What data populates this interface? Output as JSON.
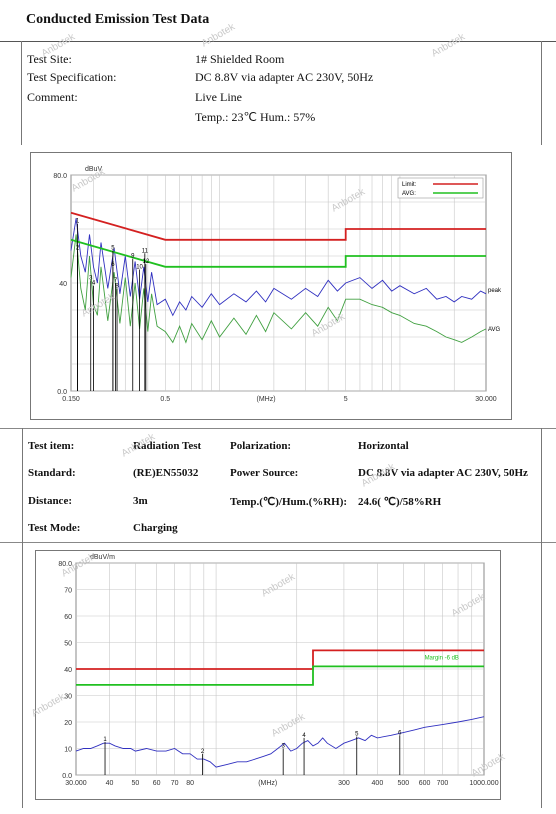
{
  "page_title": "Conducted Emission Test Data",
  "watermark": "Anbotek",
  "info1": [
    {
      "label": "Test Site:",
      "value": "1# Shielded Room"
    },
    {
      "label": "Test Specification:",
      "value": "DC 8.8V via adapter AC 230V, 50Hz"
    },
    {
      "label": "Comment:",
      "value": "Live Line"
    },
    {
      "label": "",
      "value": "Temp.: 23℃ Hum.: 57%"
    }
  ],
  "info2": {
    "test_item_label": "Test item:",
    "test_item_value": "Radiation Test",
    "polarization_label": "Polarization:",
    "polarization_value": "Horizontal",
    "standard_label": "Standard:",
    "standard_value": "(RE)EN55032",
    "power_label": "Power Source:",
    "power_value": "DC 8.8V via adapter AC 230V, 50Hz",
    "distance_label": "Distance:",
    "distance_value": "3m",
    "temp_label": "Temp.(℃)/Hum.(%RH):",
    "temp_value": "24.6(   ℃)/58%RH",
    "mode_label": "Test Mode:",
    "mode_value": "Charging"
  },
  "colors": {
    "limit": "#d42020",
    "avg": "#20c020",
    "peak": "#3030c0",
    "avg_trace": "#40a040",
    "grid": "#c8c8c8"
  },
  "chart_data": [
    {
      "type": "line",
      "x_scale": "log",
      "ylabel": "dBuV",
      "xlabel": "(MHz)",
      "xlim": [
        0.15,
        30
      ],
      "ylim": [
        0,
        80
      ],
      "y_ticks": [
        "0.0",
        "40",
        "80.0"
      ],
      "x_ticks": [
        {
          "v": 0.15,
          "label": "0.150"
        },
        {
          "v": 0.5,
          "label": "0.5"
        },
        {
          "v": 5,
          "label": "5"
        },
        {
          "v": 30,
          "label": "30.000"
        }
      ],
      "legend": [
        {
          "name": "Limit:",
          "color": "#d42020"
        },
        {
          "name": "AVG:",
          "color": "#20c020"
        }
      ],
      "trace_labels": {
        "peak": "peak",
        "avg": "AVG"
      },
      "limit_qp": {
        "x": [
          0.15,
          0.5,
          0.5,
          5,
          5,
          30
        ],
        "y": [
          66,
          56,
          56,
          56,
          60,
          60
        ]
      },
      "limit_avg": {
        "x": [
          0.15,
          0.5,
          0.5,
          5,
          5,
          30
        ],
        "y": [
          56,
          46,
          46,
          46,
          50,
          50
        ]
      },
      "peak_trace": {
        "x": [
          0.15,
          0.16,
          0.17,
          0.18,
          0.19,
          0.2,
          0.21,
          0.22,
          0.24,
          0.26,
          0.28,
          0.3,
          0.32,
          0.34,
          0.36,
          0.38,
          0.4,
          0.42,
          0.45,
          0.5,
          0.55,
          0.6,
          0.65,
          0.7,
          0.8,
          0.9,
          1.0,
          1.2,
          1.4,
          1.6,
          1.8,
          2.0,
          2.5,
          3.0,
          3.5,
          4.0,
          4.5,
          5.0,
          6.0,
          7.0,
          8.0,
          9.0,
          10,
          12,
          14,
          16,
          18,
          20,
          22,
          25,
          28,
          30
        ],
        "y": [
          52,
          64,
          50,
          44,
          58,
          46,
          40,
          55,
          38,
          53,
          36,
          50,
          35,
          48,
          34,
          46,
          33,
          44,
          32,
          34,
          28,
          33,
          30,
          35,
          31,
          36,
          32,
          36,
          33,
          37,
          33,
          38,
          34,
          38,
          35,
          41,
          37,
          40,
          42,
          38,
          41,
          37,
          39,
          36,
          38,
          34,
          35,
          33,
          35,
          34,
          37,
          36
        ]
      },
      "avg_trace": {
        "x": [
          0.15,
          0.16,
          0.17,
          0.18,
          0.19,
          0.2,
          0.21,
          0.22,
          0.24,
          0.26,
          0.28,
          0.3,
          0.32,
          0.34,
          0.36,
          0.38,
          0.4,
          0.42,
          0.45,
          0.5,
          0.55,
          0.6,
          0.65,
          0.7,
          0.8,
          0.9,
          1.0,
          1.2,
          1.4,
          1.6,
          1.8,
          2.0,
          2.5,
          3.0,
          3.5,
          4.0,
          4.5,
          5.0,
          6.0,
          7.0,
          8.0,
          9.0,
          10,
          12,
          14,
          16,
          18,
          20,
          22,
          25,
          28,
          30
        ],
        "y": [
          42,
          58,
          38,
          30,
          50,
          32,
          28,
          46,
          26,
          44,
          25,
          42,
          24,
          40,
          23,
          38,
          22,
          36,
          24,
          22,
          18,
          24,
          18,
          25,
          19,
          26,
          20,
          27,
          21,
          28,
          22,
          29,
          23,
          29,
          24,
          31,
          26,
          34,
          34,
          32,
          31,
          29,
          28,
          25,
          24,
          22,
          20,
          19,
          18,
          20,
          22,
          23
        ]
      },
      "markers": [
        {
          "label": "1",
          "x": 0.163,
          "y": 62
        },
        {
          "label": "2",
          "x": 0.163,
          "y": 52
        },
        {
          "label": "3",
          "x": 0.193,
          "y": 41
        },
        {
          "label": "4",
          "x": 0.2,
          "y": 39
        },
        {
          "label": "5",
          "x": 0.256,
          "y": 52
        },
        {
          "label": "6",
          "x": 0.256,
          "y": 46
        },
        {
          "label": "7",
          "x": 0.265,
          "y": 40
        },
        {
          "label": "8",
          "x": 0.27,
          "y": 38
        },
        {
          "label": "9",
          "x": 0.33,
          "y": 49
        },
        {
          "label": "10",
          "x": 0.36,
          "y": 45
        },
        {
          "label": "11",
          "x": 0.385,
          "y": 51
        },
        {
          "label": "12",
          "x": 0.39,
          "y": 47
        }
      ]
    },
    {
      "type": "line",
      "x_scale": "log",
      "ylabel": "dBuV/m",
      "xlabel": "(MHz)",
      "xlim": [
        30,
        1000
      ],
      "ylim": [
        0,
        80
      ],
      "y_ticks": [
        "0.0",
        "10",
        "20",
        "30",
        "40",
        "50",
        "60",
        "70",
        "80.0"
      ],
      "x_ticks": [
        {
          "v": 30,
          "label": "30.000"
        },
        {
          "v": 40,
          "label": "40"
        },
        {
          "v": 50,
          "label": "50"
        },
        {
          "v": 60,
          "label": "60"
        },
        {
          "v": 70,
          "label": "70"
        },
        {
          "v": 80,
          "label": "80"
        },
        {
          "v": 300,
          "label": "300"
        },
        {
          "v": 400,
          "label": "400"
        },
        {
          "v": 500,
          "label": "500"
        },
        {
          "v": 600,
          "label": "600"
        },
        {
          "v": 700,
          "label": "700"
        },
        {
          "v": 1000,
          "label": "1000.000"
        }
      ],
      "margin_label": "Margin -6 dB",
      "limit": {
        "x": [
          30,
          230,
          230,
          1000
        ],
        "y": [
          40,
          40,
          47,
          47
        ]
      },
      "margin_line": {
        "x": [
          30,
          230,
          230,
          1000
        ],
        "y": [
          34,
          34,
          41,
          41
        ]
      },
      "trace": {
        "x": [
          30,
          32,
          34,
          36,
          38,
          40,
          42,
          45,
          48,
          50,
          55,
          60,
          65,
          70,
          75,
          80,
          85,
          90,
          95,
          100,
          110,
          120,
          130,
          140,
          150,
          160,
          170,
          180,
          190,
          200,
          210,
          220,
          230,
          240,
          250,
          260,
          280,
          300,
          320,
          340,
          360,
          380,
          400,
          450,
          500,
          550,
          600,
          700,
          800,
          900,
          1000
        ],
        "y": [
          9,
          10,
          10,
          11,
          12,
          12,
          11,
          10,
          10,
          9,
          10,
          9,
          9,
          10,
          8,
          8,
          6,
          6,
          5,
          3,
          4,
          5,
          5,
          6,
          7,
          8,
          10,
          12,
          9,
          10,
          12,
          13,
          11,
          12,
          14,
          12,
          10,
          12,
          13,
          14,
          13,
          15,
          14,
          15,
          16,
          17,
          18,
          19,
          20,
          21,
          22
        ]
      },
      "markers": [
        {
          "label": "1",
          "x": 38.5,
          "y": 12.5
        },
        {
          "label": "2",
          "x": 89,
          "y": 8
        },
        {
          "label": "3",
          "x": 178,
          "y": 10
        },
        {
          "label": "4",
          "x": 213,
          "y": 14
        },
        {
          "label": "5",
          "x": 335,
          "y": 14.5
        },
        {
          "label": "6",
          "x": 485,
          "y": 15
        }
      ]
    }
  ]
}
